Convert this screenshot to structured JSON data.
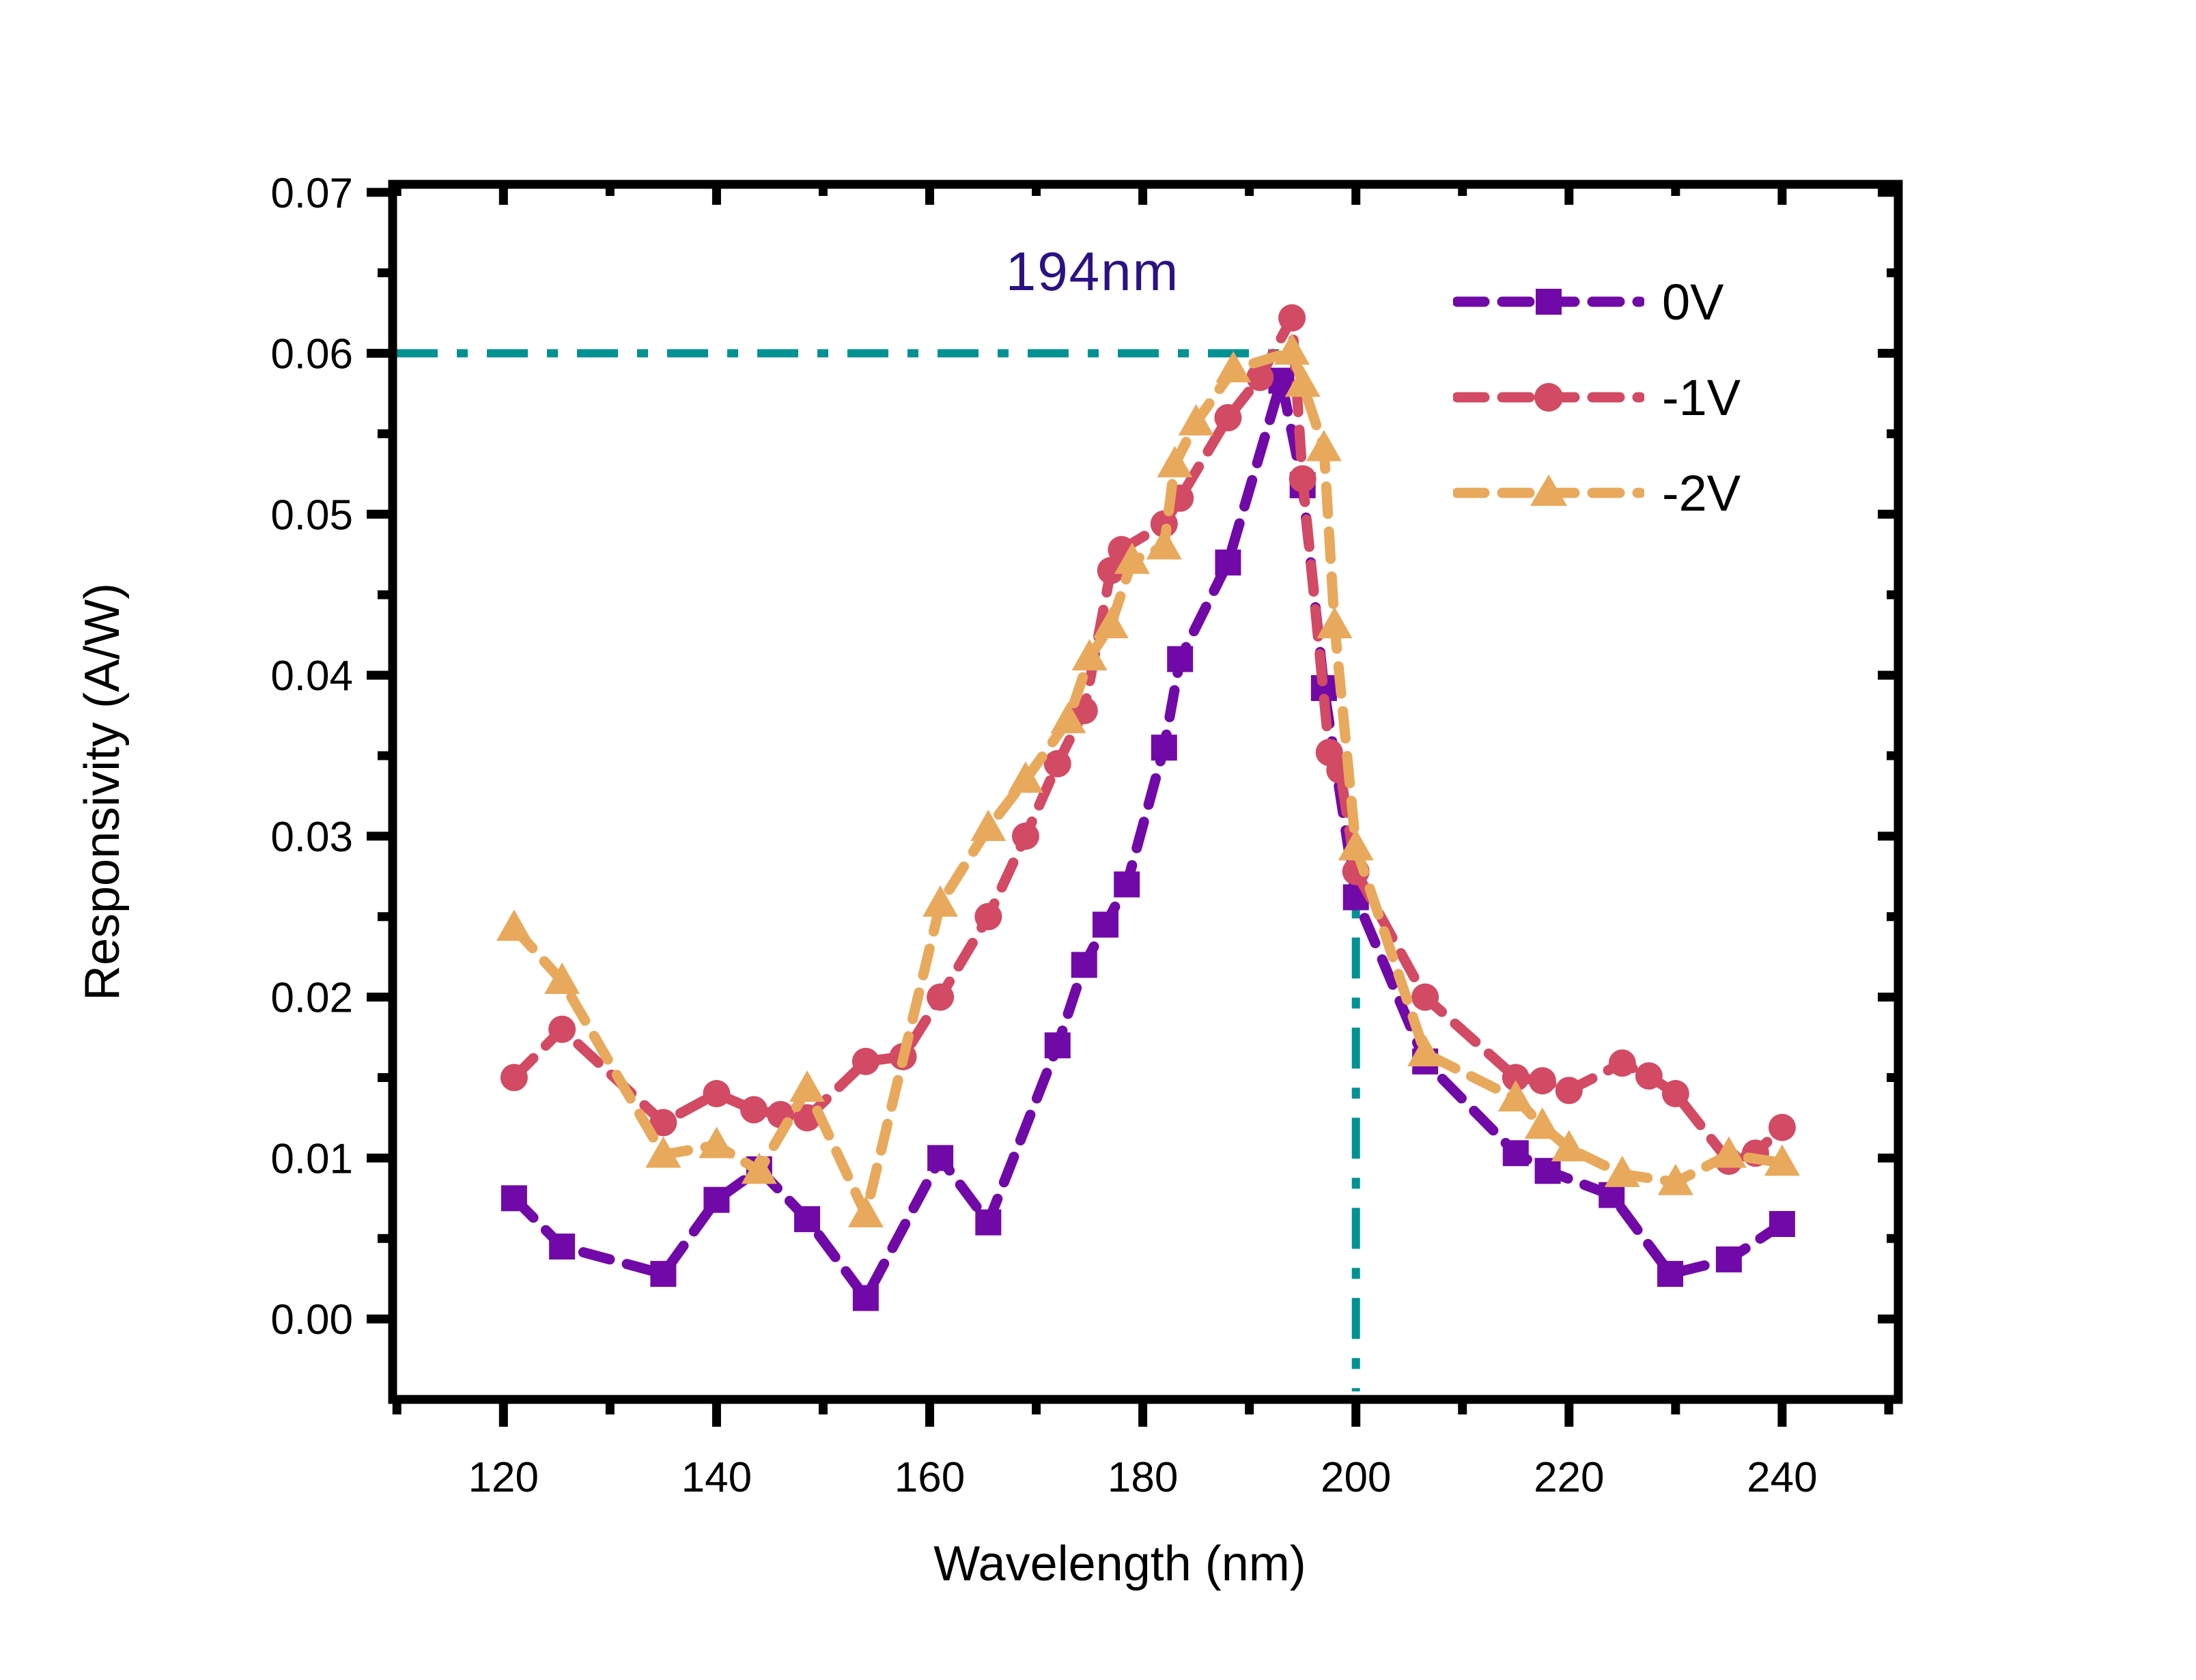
{
  "chart_data": {
    "type": "line",
    "title": "",
    "xlabel": "Wavelength (nm)",
    "ylabel": "Responsivity (A/W)",
    "xlim": [
      109.6,
      250.9
    ],
    "ylim": [
      -0.005,
      0.0705
    ],
    "grid": false,
    "legend_position": "upper right",
    "x_major_ticks": [
      120,
      140,
      160,
      180,
      200,
      220,
      240
    ],
    "x_minor_ticks": [
      110,
      130,
      150,
      170,
      190,
      210,
      230,
      250
    ],
    "y_major_ticks": [
      0.0,
      0.01,
      0.02,
      0.03,
      0.04,
      0.05,
      0.06,
      0.07
    ],
    "y_minor_ticks": [
      0.005,
      0.015,
      0.025,
      0.035,
      0.045,
      0.055,
      0.065
    ],
    "annotation": {
      "text": "194nm",
      "color": "#2b1283"
    },
    "reference_lines": {
      "color": "#009193",
      "horizontal": {
        "y": 0.06,
        "x_from": 109.6,
        "x_to": 194
      },
      "vertical": {
        "x": 200,
        "y_from": -0.0045,
        "y_to": 0.0293
      }
    },
    "series": [
      {
        "name": "0V",
        "color": "#7109a8",
        "marker": "square",
        "points": [
          [
            121,
            0.0075
          ],
          [
            125.5,
            0.0045
          ],
          [
            135,
            0.0028
          ],
          [
            140,
            0.0074
          ],
          [
            144,
            0.0093
          ],
          [
            148.5,
            0.0062
          ],
          [
            154,
            0.0013
          ],
          [
            161,
            0.01
          ],
          [
            165.5,
            0.006
          ],
          [
            172,
            0.017
          ],
          [
            174.5,
            0.022
          ],
          [
            176.5,
            0.0245
          ],
          [
            178.5,
            0.027
          ],
          [
            182,
            0.0355
          ],
          [
            183.5,
            0.041
          ],
          [
            188,
            0.047
          ],
          [
            193,
            0.0583
          ],
          [
            195,
            0.0518
          ],
          [
            197,
            0.0392
          ],
          [
            200,
            0.0262
          ],
          [
            206.5,
            0.016
          ],
          [
            215,
            0.0103
          ],
          [
            218,
            0.0092
          ],
          [
            224,
            0.0077
          ],
          [
            229.5,
            0.0028
          ],
          [
            235,
            0.0037
          ],
          [
            240,
            0.0059
          ]
        ]
      },
      {
        "name": "-1V",
        "color": "#d24a63",
        "marker": "circle",
        "points": [
          [
            121,
            0.015
          ],
          [
            125.5,
            0.018
          ],
          [
            135,
            0.0122
          ],
          [
            140,
            0.014
          ],
          [
            143.5,
            0.013
          ],
          [
            146,
            0.0127
          ],
          [
            148.5,
            0.0125
          ],
          [
            154,
            0.016
          ],
          [
            157.5,
            0.0163
          ],
          [
            161,
            0.02
          ],
          [
            165.5,
            0.025
          ],
          [
            169,
            0.03
          ],
          [
            172,
            0.0345
          ],
          [
            174.5,
            0.0378
          ],
          [
            177,
            0.0465
          ],
          [
            178,
            0.0478
          ],
          [
            182,
            0.0494
          ],
          [
            183.5,
            0.051
          ],
          [
            188,
            0.056
          ],
          [
            191,
            0.0585
          ],
          [
            194,
            0.0622
          ],
          [
            195,
            0.0522
          ],
          [
            197.5,
            0.0352
          ],
          [
            198.5,
            0.0341
          ],
          [
            200,
            0.0278
          ],
          [
            206.5,
            0.02
          ],
          [
            215,
            0.015
          ],
          [
            217.5,
            0.0148
          ],
          [
            220,
            0.0142
          ],
          [
            225,
            0.0159
          ],
          [
            227.5,
            0.0151
          ],
          [
            230,
            0.014
          ],
          [
            235,
            0.0098
          ],
          [
            237.5,
            0.0103
          ],
          [
            240,
            0.0119
          ]
        ]
      },
      {
        "name": "-2V",
        "color": "#e8a95c",
        "marker": "triangle",
        "points": [
          [
            121,
            0.0243
          ],
          [
            125.5,
            0.021
          ],
          [
            135,
            0.0102
          ],
          [
            140,
            0.0108
          ],
          [
            144,
            0.0092
          ],
          [
            148.5,
            0.0143
          ],
          [
            154,
            0.0065
          ],
          [
            161,
            0.0258
          ],
          [
            165.5,
            0.0305
          ],
          [
            169,
            0.0335
          ],
          [
            173,
            0.0372
          ],
          [
            175,
            0.0411
          ],
          [
            177,
            0.0431
          ],
          [
            179,
            0.0471
          ],
          [
            182,
            0.048
          ],
          [
            183,
            0.0531
          ],
          [
            185,
            0.0557
          ],
          [
            188.5,
            0.059
          ],
          [
            194,
            0.0601
          ],
          [
            195,
            0.0581
          ],
          [
            197,
            0.0541
          ],
          [
            198,
            0.0431
          ],
          [
            200,
            0.0293
          ],
          [
            206.5,
            0.0165
          ],
          [
            215,
            0.0137
          ],
          [
            217.5,
            0.012
          ],
          [
            220,
            0.0106
          ],
          [
            225,
            0.009
          ],
          [
            230,
            0.0085
          ],
          [
            235,
            0.0102
          ],
          [
            240,
            0.0097
          ]
        ]
      }
    ]
  }
}
